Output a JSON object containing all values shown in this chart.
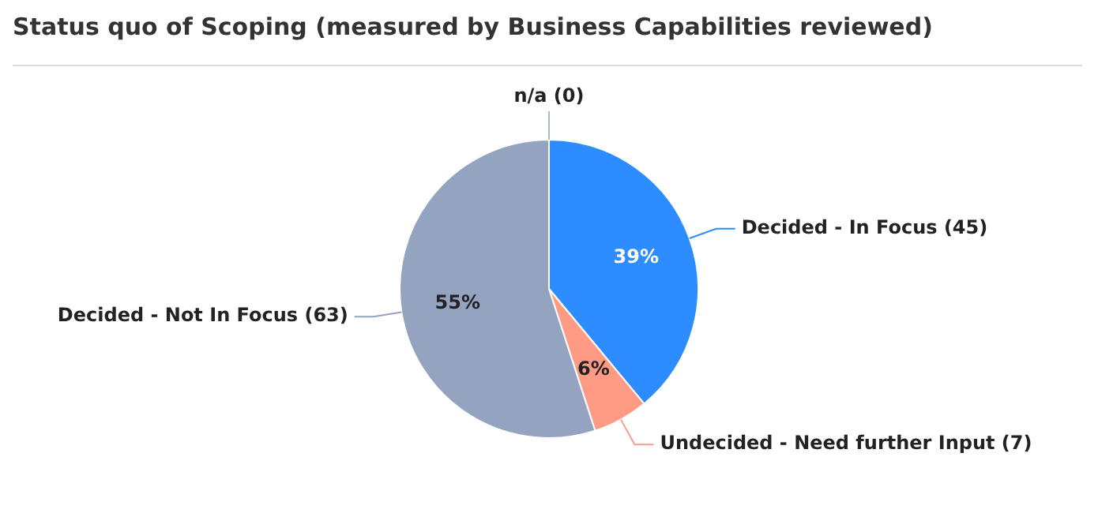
{
  "chart_data": {
    "type": "pie",
    "title": "Status quo of Scoping (measured by Business Capabilities reviewed)",
    "categories": [
      "n/a (0)",
      "Decided - In Focus (45)",
      "Undecided - Need further Input (7)",
      "Decided - Not In Focus (63)"
    ],
    "values": [
      0,
      39,
      6,
      55
    ],
    "colors": [
      "#b0b8c8",
      "#2d8cff",
      "#ff9a85",
      "#93a3c0"
    ],
    "value_labels": [
      null,
      "39%",
      "6%",
      "55%"
    ],
    "legend": false
  }
}
